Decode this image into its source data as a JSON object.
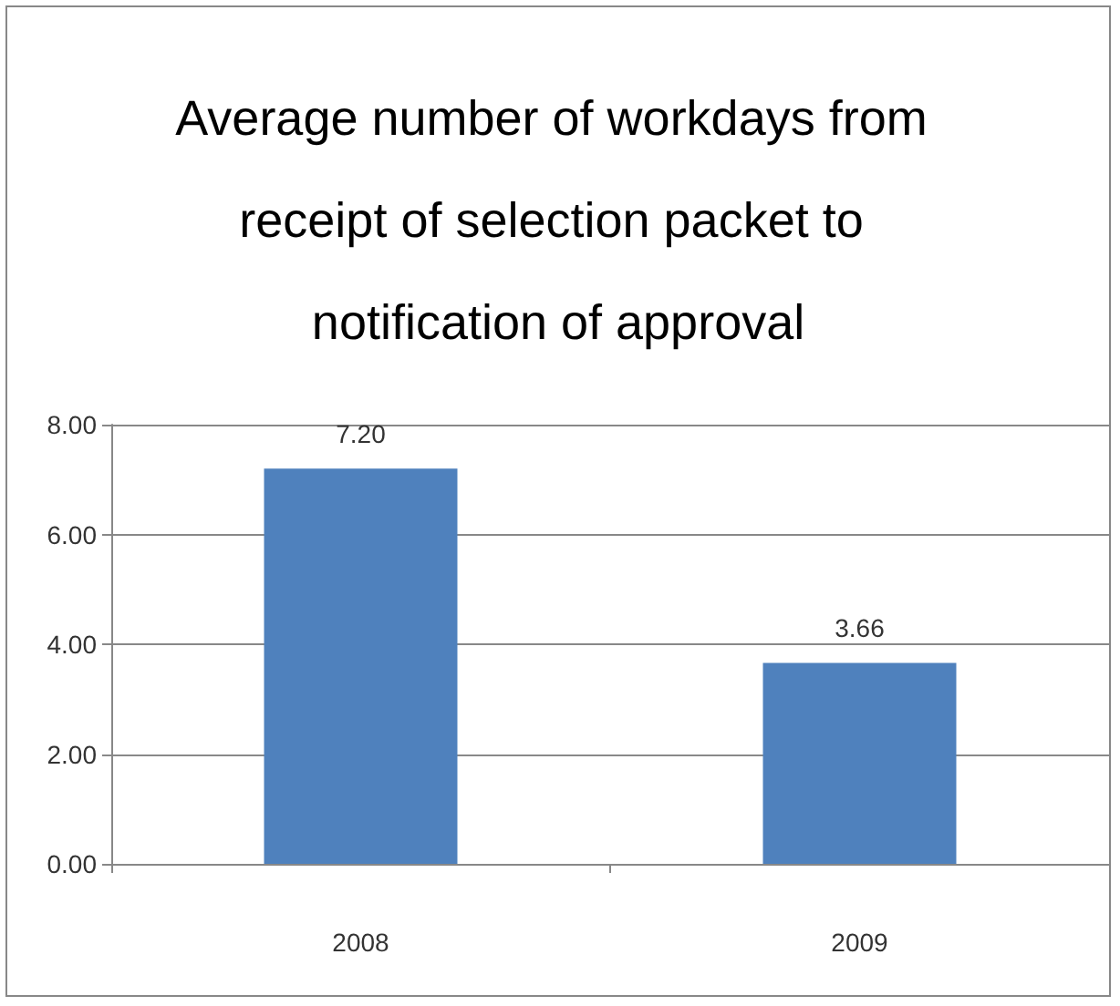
{
  "chart_data": {
    "type": "bar",
    "title": "Average number of workdays from receipt of selection packet to notification of approval",
    "categories": [
      "2008",
      "2009"
    ],
    "series": [
      {
        "color": "#4f81bd",
        "values": [
          7.2,
          3.66
        ],
        "value_labels": [
          "7.20",
          "3.66"
        ]
      }
    ],
    "ylim": [
      0,
      8
    ],
    "yticks": [
      {
        "value": 0,
        "label": "0.00"
      },
      {
        "value": 2,
        "label": "2.00"
      },
      {
        "value": 4,
        "label": "4.00"
      },
      {
        "value": 6,
        "label": "6.00"
      },
      {
        "value": 8,
        "label": "8.00"
      }
    ],
    "grid": "y"
  }
}
